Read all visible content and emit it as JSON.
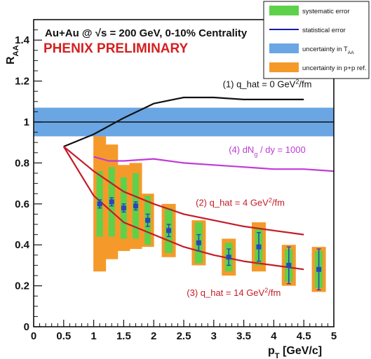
{
  "chart_data": {
    "type": "scatter",
    "title": "Au+Au @ √s = 200 GeV, 0-10% Centrality",
    "subtitle": "PHENIX PRELIMINARY",
    "xlabel": "p_T [GeV/c]",
    "ylabel": "R_AA",
    "xlim": [
      0,
      5
    ],
    "ylim": [
      0,
      1.5
    ],
    "xticks": [
      "0",
      "0.5",
      "1",
      "1.5",
      "2",
      "2.5",
      "3",
      "3.5",
      "4",
      "4.5",
      "5"
    ],
    "yticks": [
      "0",
      "0.2",
      "0.4",
      "0.6",
      "0.8",
      "1",
      "1.2",
      "1.4"
    ],
    "grid": false,
    "legend_placement": "top-right",
    "legend": [
      {
        "label": "systematic error",
        "color": "#5ed14a",
        "kind": "box"
      },
      {
        "label": "statistical error",
        "color": "#1a1aa8",
        "kind": "line"
      },
      {
        "label": "uncertainty in T_AA",
        "color": "#6aa6e4",
        "kind": "box"
      },
      {
        "label": "uncertainty in p+p ref.",
        "color": "#f59a2a",
        "kind": "box"
      }
    ],
    "taa_band": {
      "center": 1.0,
      "low": 0.93,
      "high": 1.07,
      "color": "#6aa6e4"
    },
    "data_points": {
      "color": "#2a46b8",
      "pt": [
        1.1,
        1.3,
        1.5,
        1.7,
        1.9,
        2.25,
        2.75,
        3.25,
        3.75,
        4.25,
        4.75
      ],
      "raa": [
        0.6,
        0.61,
        0.58,
        0.59,
        0.52,
        0.47,
        0.41,
        0.34,
        0.39,
        0.3,
        0.28
      ],
      "stat_err": [
        0.02,
        0.02,
        0.02,
        0.02,
        0.03,
        0.03,
        0.04,
        0.04,
        0.07,
        0.09,
        0.1
      ],
      "sys_err": [
        0.16,
        0.17,
        0.15,
        0.16,
        0.12,
        0.11,
        0.1,
        0.07,
        0.09,
        0.08,
        0.09
      ],
      "ppref_err": [
        0.33,
        0.28,
        0.21,
        0.21,
        0.13,
        0.13,
        0.11,
        0.09,
        0.12,
        0.1,
        0.11
      ]
    },
    "series": [
      {
        "name": "(1) q_hat = 0 GeV²/fm",
        "color": "#111111",
        "x": [
          0.5,
          1.0,
          1.5,
          2.0,
          2.5,
          3.0,
          3.5,
          4.0,
          4.5
        ],
        "y": [
          0.88,
          0.94,
          1.02,
          1.09,
          1.12,
          1.12,
          1.11,
          1.11,
          1.11
        ]
      },
      {
        "name": "(4) dN_g / dy = 1000",
        "color": "#c03ad6",
        "x": [
          1.0,
          1.25,
          1.5,
          2.0,
          2.5,
          3.0,
          3.5,
          4.0,
          4.5,
          5.0
        ],
        "y": [
          0.83,
          0.81,
          0.81,
          0.82,
          0.8,
          0.79,
          0.78,
          0.77,
          0.77,
          0.76
        ]
      },
      {
        "name": "(2) q_hat = 4 GeV²/fm",
        "color": "#c41c28",
        "x": [
          0.5,
          1.0,
          1.5,
          2.0,
          2.5,
          3.0,
          3.5,
          4.0,
          4.5
        ],
        "y": [
          0.88,
          0.76,
          0.66,
          0.6,
          0.55,
          0.52,
          0.49,
          0.47,
          0.45
        ]
      },
      {
        "name": "(3) q_hat = 14 GeV²/fm",
        "color": "#c41c28",
        "x": [
          0.5,
          1.0,
          1.5,
          2.0,
          2.5,
          3.0,
          3.5,
          4.0,
          4.5
        ],
        "y": [
          0.88,
          0.64,
          0.51,
          0.45,
          0.39,
          0.35,
          0.32,
          0.3,
          0.28
        ]
      }
    ],
    "annotations": [
      {
        "text": "(1) q_hat = 0 GeV²/fm",
        "color": "#111111",
        "x": 3.15,
        "y": 1.17
      },
      {
        "text": "(4) dN_g / dy = 1000",
        "color": "#c03ad6",
        "x": 3.25,
        "y": 0.85
      },
      {
        "text": "(2) q_hat = 4 GeV²/fm",
        "color": "#c41c28",
        "x": 2.7,
        "y": 0.59
      },
      {
        "text": "(3) q_hat = 14 GeV²/fm",
        "color": "#c41c28",
        "x": 2.55,
        "y": 0.15
      }
    ]
  }
}
